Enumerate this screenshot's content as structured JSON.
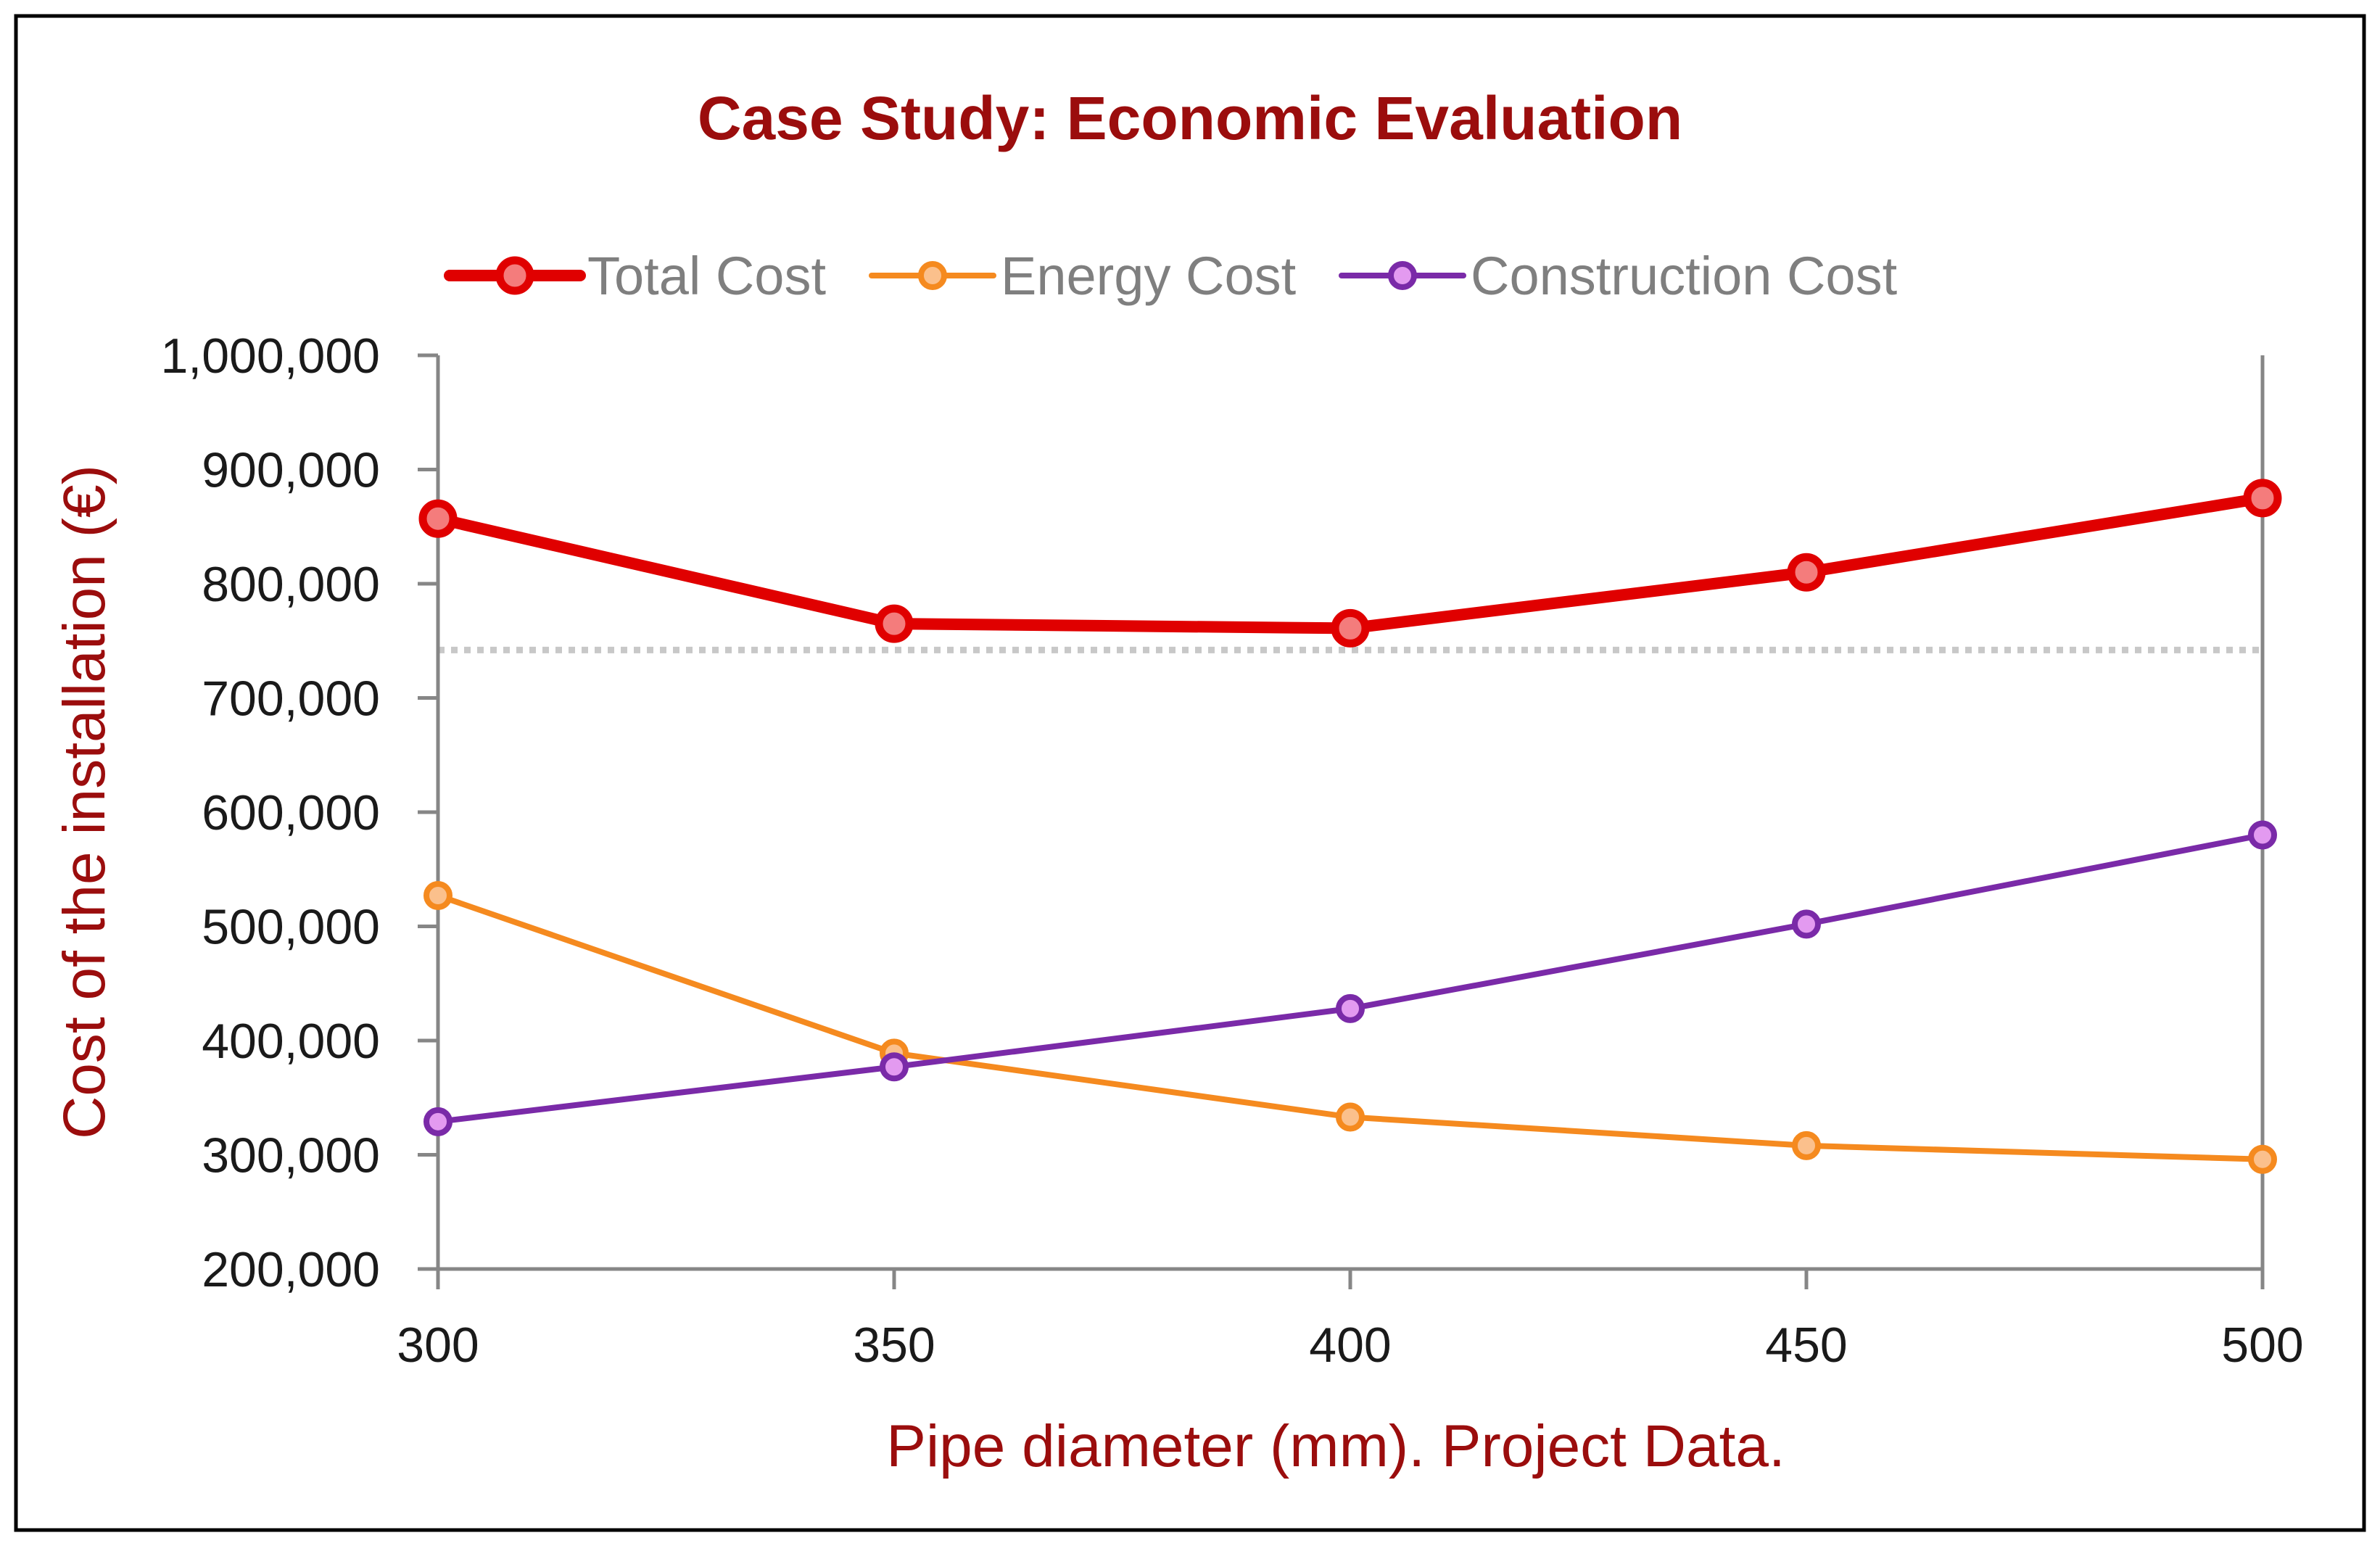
{
  "chart_data": {
    "type": "line",
    "title": "Case Study: Economic Evaluation",
    "xlabel": "Pipe diameter (mm). Project Data.",
    "ylabel": "Cost of the installation (€)",
    "x": [
      300,
      350,
      400,
      450,
      500
    ],
    "x_tick_labels": [
      "300",
      "350",
      "400",
      "450",
      "500"
    ],
    "ylim": [
      200000,
      1000000
    ],
    "y_tick_labels": [
      "1,000,000",
      "900,000",
      "800,000",
      "700,000",
      "600,000",
      "500,000",
      "400,000",
      "300,000",
      "200,000"
    ],
    "y_ticks": [
      1000000,
      900000,
      800000,
      700000,
      600000,
      500000,
      400000,
      300000,
      200000
    ],
    "reference_line": {
      "y": 742000,
      "style": "dotted",
      "color": "#c8c8c8"
    },
    "legend_position": "top",
    "grid": false,
    "series": [
      {
        "name": "Total Cost",
        "values": [
          857000,
          765000,
          761000,
          810000,
          875000
        ],
        "color": "#e00000",
        "marker_fill": "#f47c7c",
        "weight": "heavy"
      },
      {
        "name": "Energy Cost",
        "values": [
          527000,
          389000,
          333000,
          308000,
          296000
        ],
        "color": "#f58a1f",
        "marker_fill": "#fbc08c",
        "weight": "normal"
      },
      {
        "name": "Construction Cost",
        "values": [
          329000,
          377000,
          428000,
          502000,
          580000
        ],
        "color": "#7a2aa8",
        "marker_fill": "#e39af0",
        "weight": "normal"
      }
    ]
  },
  "colors": {
    "title": "#9b0d0d",
    "axis_title": "#9b0d0d",
    "axis_line": "#868686",
    "frame": "#000000"
  }
}
